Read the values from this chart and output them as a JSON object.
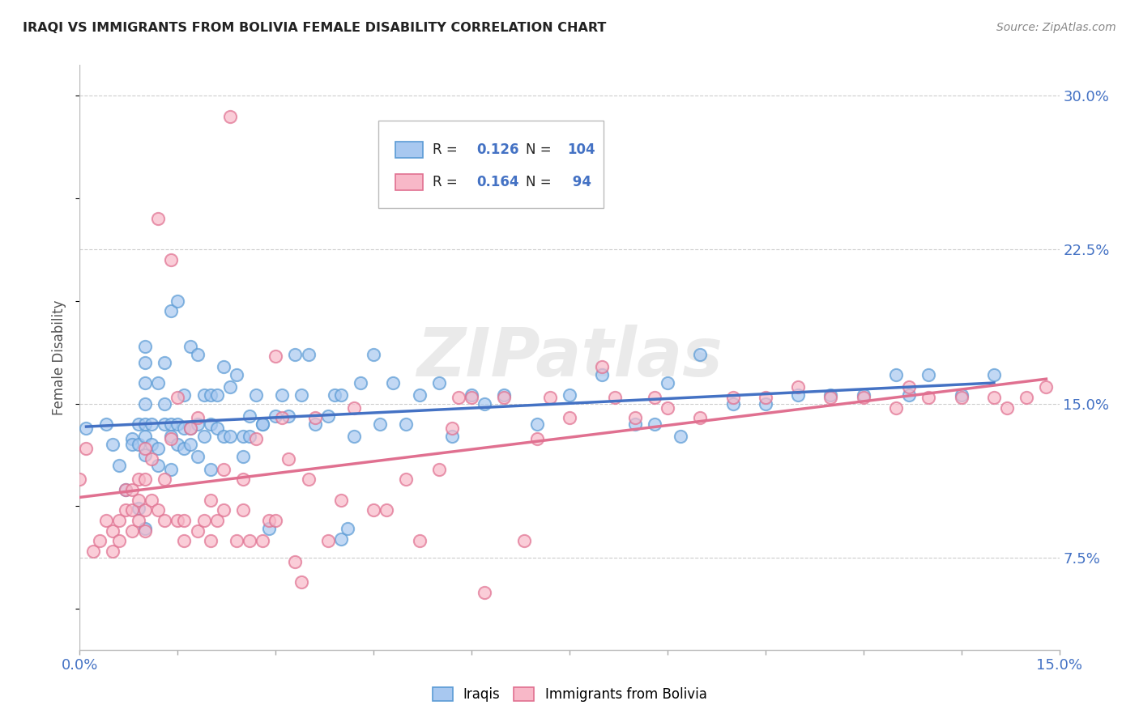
{
  "title": "IRAQI VS IMMIGRANTS FROM BOLIVIA FEMALE DISABILITY CORRELATION CHART",
  "source": "Source: ZipAtlas.com",
  "ylabel": "Female Disability",
  "xlim": [
    0.0,
    0.15
  ],
  "ylim": [
    0.03,
    0.315
  ],
  "yticks_right": [
    0.075,
    0.15,
    0.225,
    0.3
  ],
  "ytick_labels_right": [
    "7.5%",
    "15.0%",
    "22.5%",
    "30.0%"
  ],
  "legend_r1": "R = 0.126",
  "legend_n1": "N = 104",
  "legend_r2": "R = 0.164",
  "legend_n2": "N =  94",
  "color_iraqi_fill": "#A8C8F0",
  "color_iraqi_edge": "#5B9BD5",
  "color_bolivia_fill": "#F8B8C8",
  "color_bolivia_edge": "#E07090",
  "color_line_iraqi": "#4472C4",
  "color_line_bolivia": "#E07090",
  "color_blue_text": "#4472C4",
  "color_axis_text": "#4472C4",
  "background_color": "#FFFFFF",
  "grid_color": "#CCCCCC",
  "iraqi_x": [
    0.001,
    0.004,
    0.005,
    0.006,
    0.007,
    0.008,
    0.008,
    0.009,
    0.009,
    0.009,
    0.01,
    0.01,
    0.01,
    0.01,
    0.01,
    0.01,
    0.01,
    0.01,
    0.011,
    0.011,
    0.012,
    0.012,
    0.012,
    0.013,
    0.013,
    0.013,
    0.014,
    0.014,
    0.014,
    0.014,
    0.015,
    0.015,
    0.015,
    0.016,
    0.016,
    0.016,
    0.017,
    0.017,
    0.017,
    0.018,
    0.018,
    0.018,
    0.019,
    0.019,
    0.02,
    0.02,
    0.02,
    0.021,
    0.021,
    0.022,
    0.022,
    0.023,
    0.023,
    0.024,
    0.025,
    0.025,
    0.026,
    0.026,
    0.027,
    0.028,
    0.028,
    0.029,
    0.03,
    0.031,
    0.032,
    0.033,
    0.034,
    0.035,
    0.036,
    0.038,
    0.039,
    0.04,
    0.04,
    0.041,
    0.042,
    0.043,
    0.045,
    0.046,
    0.048,
    0.05,
    0.052,
    0.055,
    0.057,
    0.06,
    0.062,
    0.065,
    0.07,
    0.075,
    0.08,
    0.085,
    0.088,
    0.09,
    0.092,
    0.095,
    0.1,
    0.105,
    0.11,
    0.115,
    0.12,
    0.125,
    0.127,
    0.13,
    0.135,
    0.14
  ],
  "iraqi_y": [
    0.138,
    0.14,
    0.13,
    0.12,
    0.108,
    0.133,
    0.13,
    0.14,
    0.099,
    0.13,
    0.134,
    0.14,
    0.15,
    0.16,
    0.17,
    0.178,
    0.089,
    0.125,
    0.13,
    0.14,
    0.12,
    0.128,
    0.16,
    0.14,
    0.15,
    0.17,
    0.118,
    0.134,
    0.14,
    0.195,
    0.2,
    0.13,
    0.14,
    0.154,
    0.128,
    0.138,
    0.178,
    0.13,
    0.138,
    0.174,
    0.124,
    0.14,
    0.154,
    0.134,
    0.154,
    0.118,
    0.14,
    0.154,
    0.138,
    0.168,
    0.134,
    0.158,
    0.134,
    0.164,
    0.134,
    0.124,
    0.144,
    0.134,
    0.154,
    0.14,
    0.14,
    0.089,
    0.144,
    0.154,
    0.144,
    0.174,
    0.154,
    0.174,
    0.14,
    0.144,
    0.154,
    0.084,
    0.154,
    0.089,
    0.134,
    0.16,
    0.174,
    0.14,
    0.16,
    0.14,
    0.154,
    0.16,
    0.134,
    0.154,
    0.15,
    0.154,
    0.14,
    0.154,
    0.164,
    0.14,
    0.14,
    0.16,
    0.134,
    0.174,
    0.15,
    0.15,
    0.154,
    0.154,
    0.154,
    0.164,
    0.154,
    0.164,
    0.154,
    0.164
  ],
  "bolivia_x": [
    0.0,
    0.001,
    0.002,
    0.003,
    0.004,
    0.005,
    0.005,
    0.006,
    0.006,
    0.007,
    0.007,
    0.008,
    0.008,
    0.008,
    0.009,
    0.009,
    0.009,
    0.01,
    0.01,
    0.01,
    0.01,
    0.011,
    0.011,
    0.012,
    0.012,
    0.013,
    0.013,
    0.014,
    0.014,
    0.015,
    0.015,
    0.016,
    0.016,
    0.017,
    0.018,
    0.018,
    0.019,
    0.02,
    0.02,
    0.021,
    0.022,
    0.022,
    0.023,
    0.024,
    0.025,
    0.025,
    0.026,
    0.027,
    0.028,
    0.029,
    0.03,
    0.03,
    0.031,
    0.032,
    0.033,
    0.034,
    0.035,
    0.036,
    0.038,
    0.04,
    0.042,
    0.045,
    0.047,
    0.05,
    0.052,
    0.055,
    0.057,
    0.058,
    0.06,
    0.062,
    0.065,
    0.068,
    0.07,
    0.072,
    0.075,
    0.08,
    0.082,
    0.085,
    0.088,
    0.09,
    0.095,
    0.1,
    0.105,
    0.11,
    0.115,
    0.12,
    0.125,
    0.127,
    0.13,
    0.135,
    0.14,
    0.142,
    0.145,
    0.148
  ],
  "bolivia_y": [
    0.113,
    0.128,
    0.078,
    0.083,
    0.093,
    0.078,
    0.088,
    0.083,
    0.093,
    0.098,
    0.108,
    0.088,
    0.098,
    0.108,
    0.093,
    0.103,
    0.113,
    0.088,
    0.098,
    0.113,
    0.128,
    0.103,
    0.123,
    0.098,
    0.24,
    0.093,
    0.113,
    0.22,
    0.133,
    0.093,
    0.153,
    0.083,
    0.093,
    0.138,
    0.088,
    0.143,
    0.093,
    0.083,
    0.103,
    0.093,
    0.098,
    0.118,
    0.29,
    0.083,
    0.098,
    0.113,
    0.083,
    0.133,
    0.083,
    0.093,
    0.093,
    0.173,
    0.143,
    0.123,
    0.073,
    0.063,
    0.113,
    0.143,
    0.083,
    0.103,
    0.148,
    0.098,
    0.098,
    0.113,
    0.083,
    0.118,
    0.138,
    0.153,
    0.153,
    0.058,
    0.153,
    0.083,
    0.133,
    0.153,
    0.143,
    0.168,
    0.153,
    0.143,
    0.153,
    0.148,
    0.143,
    0.153,
    0.153,
    0.158,
    0.153,
    0.153,
    0.148,
    0.158,
    0.153,
    0.153,
    0.153,
    0.148,
    0.153,
    0.158
  ]
}
